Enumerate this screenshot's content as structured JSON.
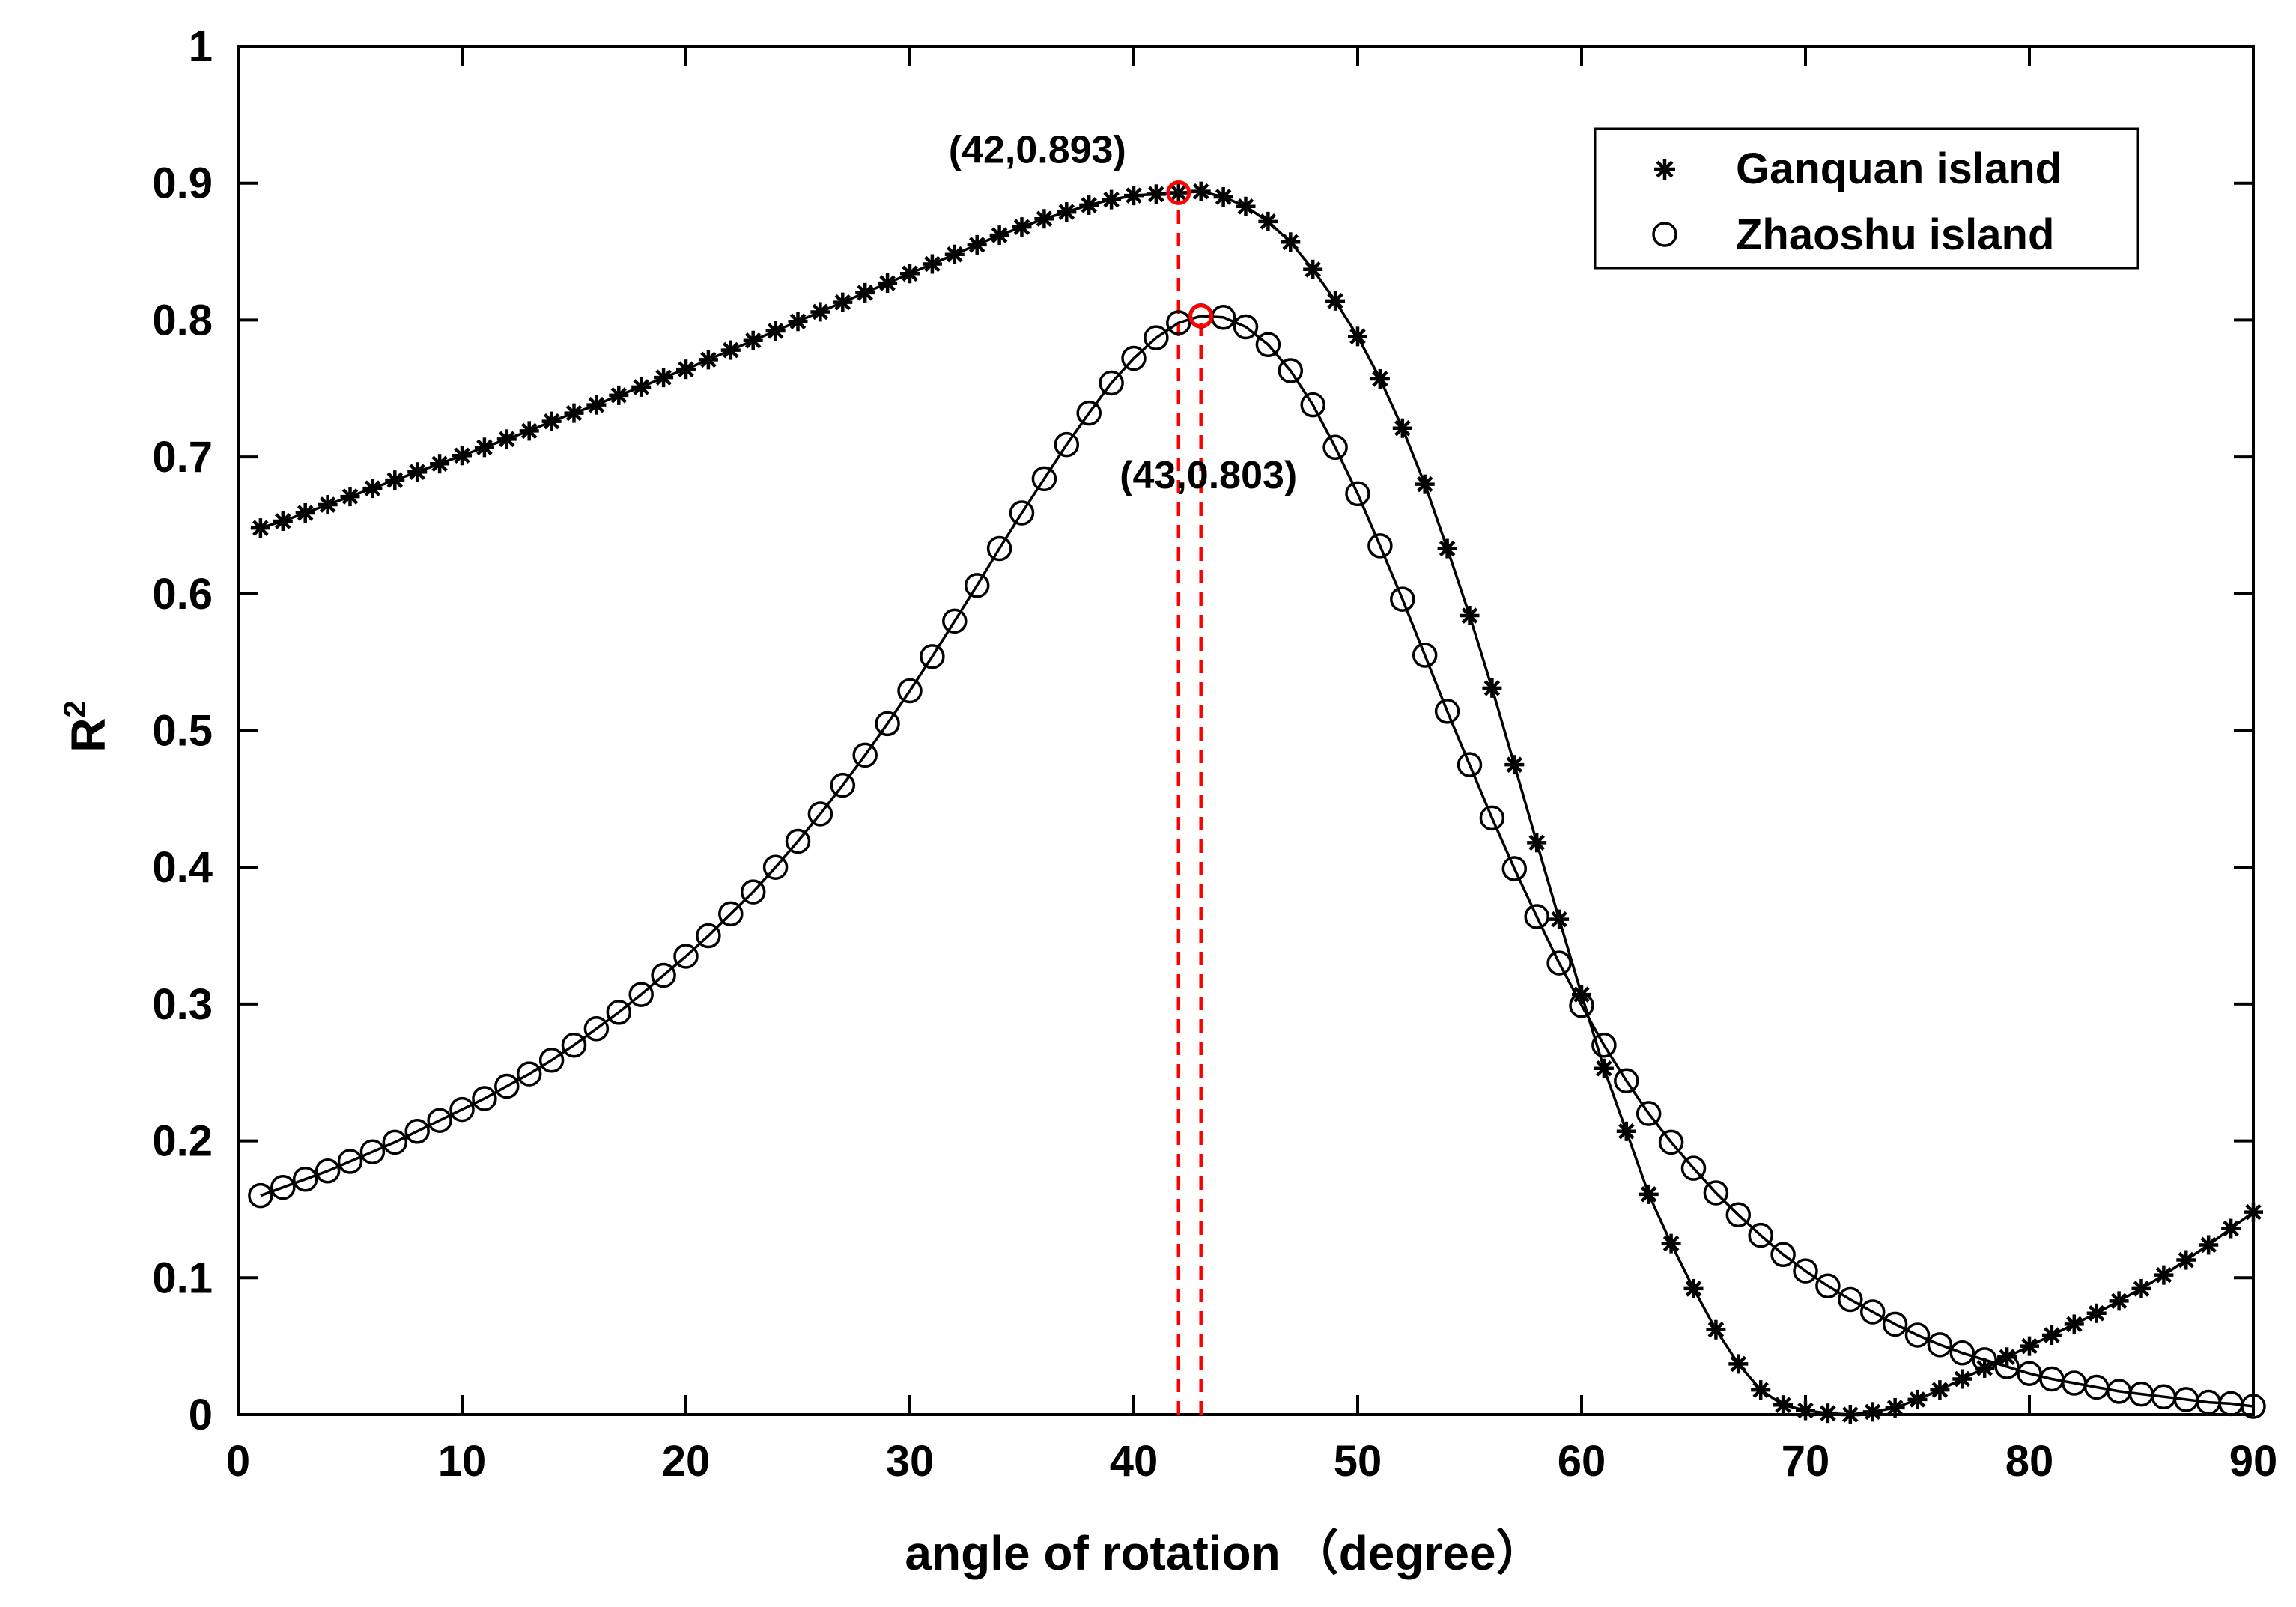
{
  "chart_data": {
    "type": "line",
    "xlabel_text": "angle of rotation",
    "xlabel_unit": "（degree）",
    "ylabel_base": "R",
    "ylabel_exponent": "2",
    "xlim": [
      0,
      90
    ],
    "ylim": [
      0,
      1
    ],
    "xticks": [
      0,
      10,
      20,
      30,
      40,
      50,
      60,
      70,
      80,
      90
    ],
    "xtick_labels": [
      "0",
      "10",
      "20",
      "30",
      "40",
      "50",
      "60",
      "70",
      "80",
      "90"
    ],
    "yticks": [
      0,
      0.1,
      0.2,
      0.3,
      0.4,
      0.5,
      0.6,
      0.7,
      0.8,
      0.9,
      1
    ],
    "ytick_labels": [
      "0",
      "0.1",
      "0.2",
      "0.3",
      "0.4",
      "0.5",
      "0.6",
      "0.7",
      "0.8",
      "0.9",
      "1"
    ],
    "grid": false,
    "legend_position": "top-right",
    "series": [
      {
        "name": "Ganquan island",
        "marker": "asterisk",
        "color": "#000000",
        "x": [
          1,
          2,
          3,
          4,
          5,
          6,
          7,
          8,
          9,
          10,
          11,
          12,
          13,
          14,
          15,
          16,
          17,
          18,
          19,
          20,
          21,
          22,
          23,
          24,
          25,
          26,
          27,
          28,
          29,
          30,
          31,
          32,
          33,
          34,
          35,
          36,
          37,
          38,
          39,
          40,
          41,
          42,
          43,
          44,
          45,
          46,
          47,
          48,
          49,
          50,
          51,
          52,
          53,
          54,
          55,
          56,
          57,
          58,
          59,
          60,
          61,
          62,
          63,
          64,
          65,
          66,
          67,
          68,
          69,
          70,
          71,
          72,
          73,
          74,
          75,
          76,
          77,
          78,
          79,
          80,
          81,
          82,
          83,
          84,
          85,
          86,
          87,
          88,
          89,
          90
        ],
        "values": [
          0.648,
          0.653,
          0.659,
          0.665,
          0.671,
          0.677,
          0.683,
          0.689,
          0.695,
          0.701,
          0.707,
          0.713,
          0.719,
          0.726,
          0.732,
          0.738,
          0.745,
          0.751,
          0.758,
          0.764,
          0.771,
          0.778,
          0.785,
          0.792,
          0.799,
          0.806,
          0.813,
          0.82,
          0.827,
          0.834,
          0.841,
          0.848,
          0.855,
          0.862,
          0.868,
          0.874,
          0.879,
          0.884,
          0.888,
          0.891,
          0.892,
          0.893,
          0.894,
          0.89,
          0.883,
          0.872,
          0.857,
          0.837,
          0.814,
          0.788,
          0.757,
          0.721,
          0.68,
          0.633,
          0.584,
          0.531,
          0.475,
          0.418,
          0.362,
          0.307,
          0.253,
          0.207,
          0.161,
          0.125,
          0.092,
          0.062,
          0.037,
          0.018,
          0.007,
          0.003,
          0.001,
          0.0,
          0.002,
          0.005,
          0.011,
          0.018,
          0.026,
          0.034,
          0.042,
          0.05,
          0.058,
          0.066,
          0.074,
          0.083,
          0.092,
          0.102,
          0.113,
          0.124,
          0.136,
          0.148
        ]
      },
      {
        "name": "Zhaoshu island",
        "marker": "circle",
        "color": "#000000",
        "x": [
          1,
          2,
          3,
          4,
          5,
          6,
          7,
          8,
          9,
          10,
          11,
          12,
          13,
          14,
          15,
          16,
          17,
          18,
          19,
          20,
          21,
          22,
          23,
          24,
          25,
          26,
          27,
          28,
          29,
          30,
          31,
          32,
          33,
          34,
          35,
          36,
          37,
          38,
          39,
          40,
          41,
          42,
          43,
          44,
          45,
          46,
          47,
          48,
          49,
          50,
          51,
          52,
          53,
          54,
          55,
          56,
          57,
          58,
          59,
          60,
          61,
          62,
          63,
          64,
          65,
          66,
          67,
          68,
          69,
          70,
          71,
          72,
          73,
          74,
          75,
          76,
          77,
          78,
          79,
          80,
          81,
          82,
          83,
          84,
          85,
          86,
          87,
          88,
          89,
          90
        ],
        "values": [
          0.16,
          0.166,
          0.172,
          0.178,
          0.185,
          0.192,
          0.199,
          0.207,
          0.215,
          0.223,
          0.231,
          0.24,
          0.249,
          0.259,
          0.27,
          0.282,
          0.294,
          0.307,
          0.321,
          0.335,
          0.35,
          0.366,
          0.382,
          0.4,
          0.419,
          0.439,
          0.46,
          0.482,
          0.505,
          0.529,
          0.554,
          0.58,
          0.606,
          0.633,
          0.659,
          0.684,
          0.709,
          0.732,
          0.754,
          0.772,
          0.787,
          0.798,
          0.803,
          0.802,
          0.795,
          0.782,
          0.763,
          0.738,
          0.707,
          0.673,
          0.635,
          0.596,
          0.555,
          0.514,
          0.475,
          0.436,
          0.399,
          0.364,
          0.33,
          0.299,
          0.27,
          0.244,
          0.22,
          0.199,
          0.18,
          0.162,
          0.146,
          0.131,
          0.117,
          0.105,
          0.094,
          0.084,
          0.075,
          0.066,
          0.058,
          0.051,
          0.045,
          0.04,
          0.035,
          0.03,
          0.026,
          0.023,
          0.02,
          0.017,
          0.015,
          0.013,
          0.011,
          0.009,
          0.008,
          0.006
        ]
      }
    ],
    "annotations": [
      {
        "x": 42,
        "y": 0.893,
        "label": "(42,0.893)",
        "color": "#ff0000",
        "label_position": "upper-left"
      },
      {
        "x": 43,
        "y": 0.803,
        "label": "(43,0.803)",
        "color": "#ff0000",
        "label_position": "below"
      }
    ]
  }
}
